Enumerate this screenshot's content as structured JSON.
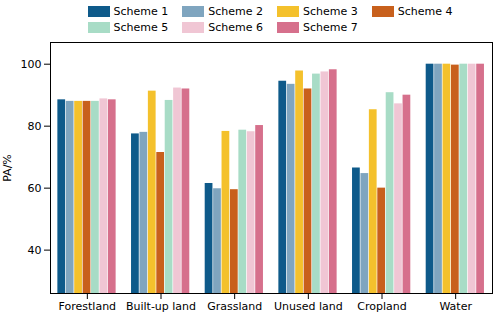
{
  "chart_data": {
    "type": "bar",
    "ylabel": "PA/%",
    "categories": [
      "Forestland",
      "Built-up land",
      "Grassland",
      "Unused land",
      "Cropland",
      "Water"
    ],
    "series": [
      {
        "name": "Scheme 1",
        "color": "#0e5a8a",
        "values": [
          88.5,
          77.5,
          61.5,
          94.5,
          66.5,
          100
        ]
      },
      {
        "name": "Scheme 2",
        "color": "#7fa5bf",
        "values": [
          88,
          78,
          59.8,
          93.5,
          64.7,
          100
        ]
      },
      {
        "name": "Scheme 3",
        "color": "#f4c12c",
        "values": [
          88,
          91.3,
          78.3,
          97.8,
          85.3,
          100
        ]
      },
      {
        "name": "Scheme 4",
        "color": "#c8601c",
        "values": [
          88,
          71.5,
          59.5,
          92,
          60,
          99.7
        ]
      },
      {
        "name": "Scheme 5",
        "color": "#a8dcc6",
        "values": [
          88,
          88.3,
          78.7,
          96.8,
          90.8,
          100
        ]
      },
      {
        "name": "Scheme 6",
        "color": "#f0c6d4",
        "values": [
          88.8,
          92.3,
          78.2,
          97.5,
          87.2,
          100
        ]
      },
      {
        "name": "Scheme 7",
        "color": "#d6708c",
        "values": [
          88.5,
          92,
          80.2,
          98.2,
          90,
          100
        ]
      }
    ],
    "ylim": [
      26,
      107
    ],
    "yticks": [
      40,
      60,
      80,
      100
    ],
    "legend": "top"
  }
}
